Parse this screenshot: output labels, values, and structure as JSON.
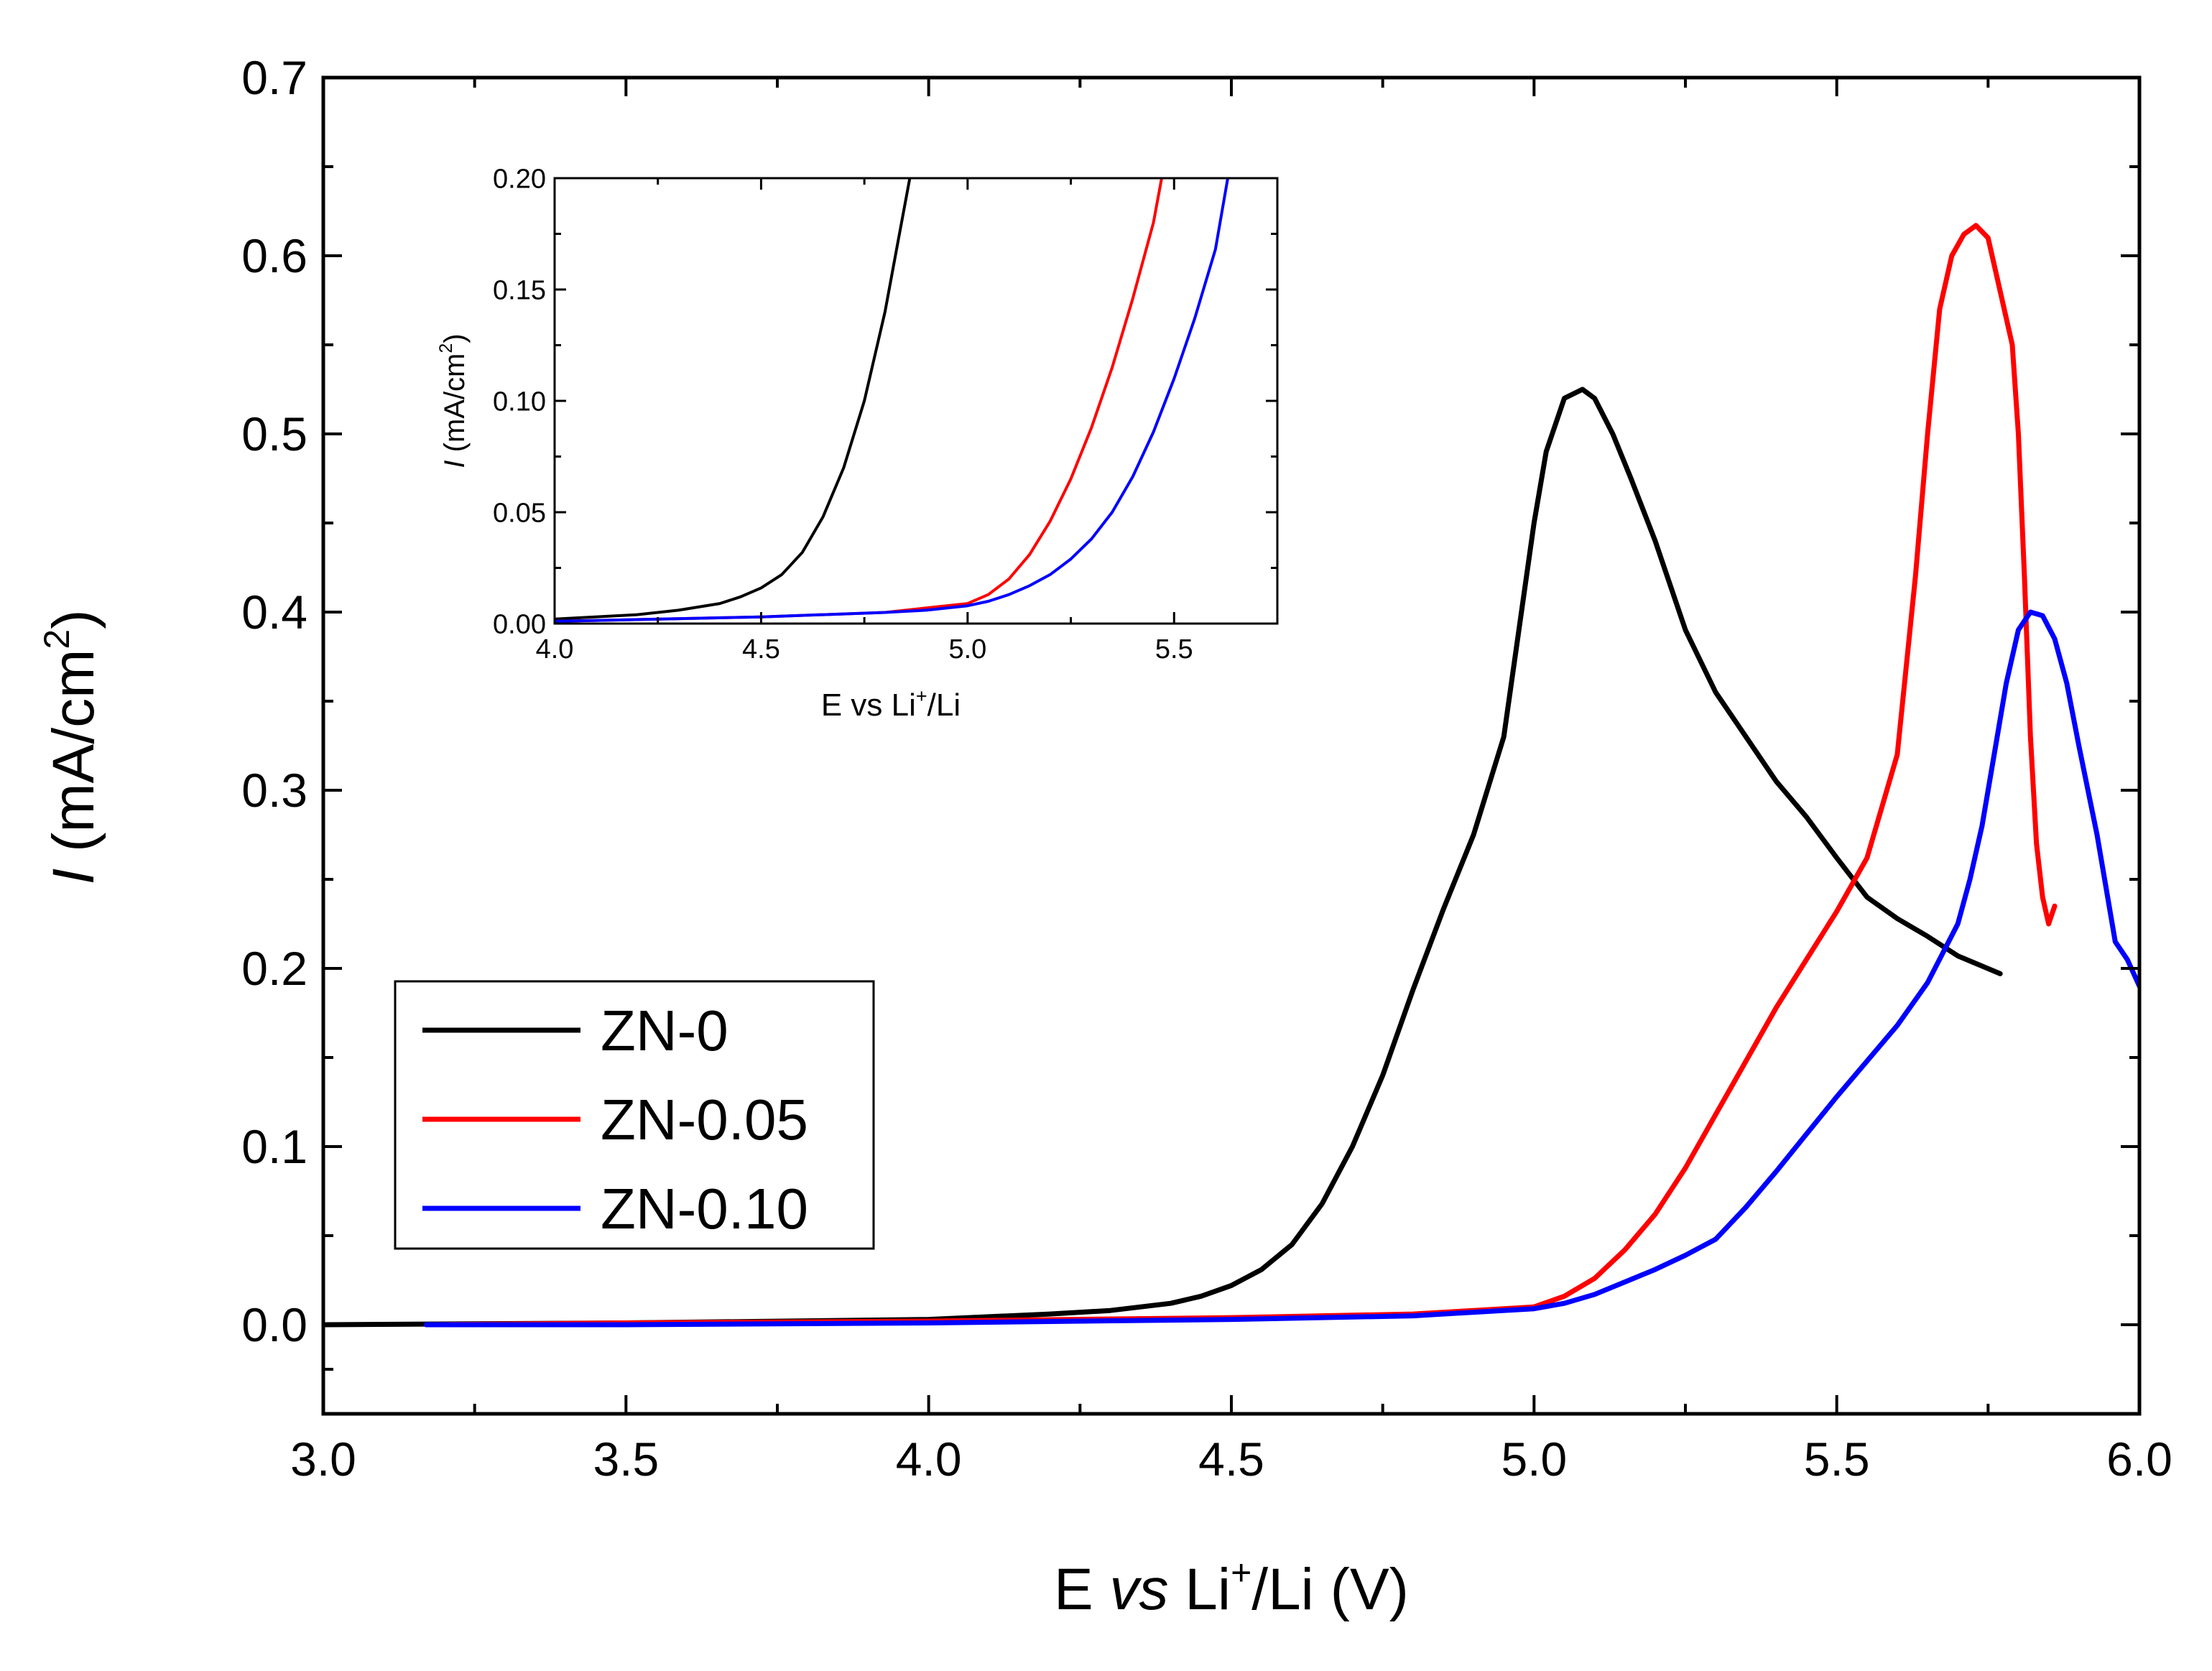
{
  "chart_data": [
    {
      "id": "main",
      "type": "line",
      "title": "",
      "xlabel": {
        "main": "E ",
        "italic": "vs",
        "mid": " Li",
        "sup": "+",
        "tail": "/Li (V)"
      },
      "ylabel": {
        "italic": "I",
        "mid": " (mA/cm",
        "sup": "2",
        "tail": ")"
      },
      "xlim": [
        3.0,
        6.0
      ],
      "ylim": [
        -0.05,
        0.7
      ],
      "xticks": [
        3.0,
        3.5,
        4.0,
        4.5,
        5.0,
        5.5,
        6.0
      ],
      "xtick_labels": [
        "3.0",
        "3.5",
        "4.0",
        "4.5",
        "5.0",
        "5.5",
        "6.0"
      ],
      "yticks": [
        0.0,
        0.1,
        0.2,
        0.3,
        0.4,
        0.5,
        0.6,
        0.7
      ],
      "ytick_labels": [
        "0.0",
        "0.1",
        "0.2",
        "0.3",
        "0.4",
        "0.5",
        "0.6",
        "0.7"
      ],
      "grid": false,
      "legend_position": "bottom-left",
      "series": [
        {
          "name": "ZN-0",
          "color": "#000000",
          "x": [
            3.0,
            3.5,
            4.0,
            4.2,
            4.3,
            4.4,
            4.45,
            4.5,
            4.55,
            4.6,
            4.65,
            4.7,
            4.75,
            4.8,
            4.85,
            4.9,
            4.95,
            5.0,
            5.02,
            5.05,
            5.08,
            5.1,
            5.13,
            5.16,
            5.2,
            5.25,
            5.3,
            5.35,
            5.4,
            5.45,
            5.5,
            5.55,
            5.6,
            5.65,
            5.7,
            5.77
          ],
          "y": [
            0.0,
            0.001,
            0.003,
            0.006,
            0.008,
            0.012,
            0.016,
            0.022,
            0.031,
            0.045,
            0.068,
            0.1,
            0.14,
            0.188,
            0.233,
            0.275,
            0.33,
            0.45,
            0.49,
            0.52,
            0.525,
            0.52,
            0.5,
            0.475,
            0.44,
            0.39,
            0.355,
            0.33,
            0.305,
            0.285,
            0.262,
            0.24,
            0.228,
            0.218,
            0.207,
            0.197
          ]
        },
        {
          "name": "ZN-0.05",
          "color": "#ff0000",
          "x": [
            3.17,
            3.5,
            4.0,
            4.5,
            4.8,
            4.9,
            5.0,
            5.05,
            5.1,
            5.15,
            5.2,
            5.25,
            5.3,
            5.35,
            5.4,
            5.45,
            5.5,
            5.55,
            5.6,
            5.63,
            5.65,
            5.67,
            5.69,
            5.71,
            5.73,
            5.75,
            5.77,
            5.79,
            5.8,
            5.81,
            5.82,
            5.83,
            5.84,
            5.85,
            5.86
          ],
          "y": [
            0.0,
            0.001,
            0.002,
            0.004,
            0.006,
            0.008,
            0.01,
            0.016,
            0.026,
            0.042,
            0.062,
            0.088,
            0.118,
            0.148,
            0.178,
            0.205,
            0.232,
            0.262,
            0.32,
            0.42,
            0.5,
            0.57,
            0.6,
            0.612,
            0.617,
            0.61,
            0.58,
            0.55,
            0.5,
            0.42,
            0.33,
            0.27,
            0.24,
            0.225,
            0.235
          ]
        },
        {
          "name": "ZN-0.10",
          "color": "#0000ff",
          "x": [
            3.17,
            3.5,
            4.0,
            4.5,
            4.8,
            4.9,
            5.0,
            5.05,
            5.1,
            5.15,
            5.2,
            5.25,
            5.3,
            5.35,
            5.4,
            5.45,
            5.5,
            5.55,
            5.6,
            5.65,
            5.7,
            5.72,
            5.74,
            5.76,
            5.78,
            5.8,
            5.82,
            5.84,
            5.86,
            5.88,
            5.9,
            5.93,
            5.96,
            5.98,
            6.0
          ],
          "y": [
            0.0,
            0.0,
            0.001,
            0.003,
            0.005,
            0.007,
            0.009,
            0.012,
            0.017,
            0.024,
            0.031,
            0.039,
            0.048,
            0.066,
            0.086,
            0.107,
            0.128,
            0.148,
            0.168,
            0.192,
            0.225,
            0.25,
            0.28,
            0.32,
            0.36,
            0.39,
            0.4,
            0.398,
            0.385,
            0.36,
            0.325,
            0.275,
            0.215,
            0.205,
            0.19
          ]
        }
      ]
    },
    {
      "id": "inset",
      "type": "line",
      "title": "",
      "xlabel": {
        "main": "E vs Li",
        "sup": "+",
        "tail": "/Li"
      },
      "ylabel": {
        "italic": "I",
        "mid": " (mA/cm",
        "sup": "2",
        "tail": ")"
      },
      "xlim": [
        4.0,
        5.75
      ],
      "ylim": [
        0.0,
        0.2
      ],
      "xticks": [
        4.0,
        4.5,
        5.0,
        5.5
      ],
      "xtick_labels": [
        "4.0",
        "4.5",
        "5.0",
        "5.5"
      ],
      "yticks": [
        0.0,
        0.05,
        0.1,
        0.15,
        0.2
      ],
      "ytick_labels": [
        "0.00",
        "0.05",
        "0.10",
        "0.15",
        "0.20"
      ],
      "grid": false,
      "series": [
        {
          "name": "ZN-0",
          "color": "#000000",
          "x": [
            4.0,
            4.2,
            4.3,
            4.4,
            4.45,
            4.5,
            4.55,
            4.6,
            4.65,
            4.7,
            4.75,
            4.8,
            4.83,
            4.86
          ],
          "y": [
            0.002,
            0.004,
            0.006,
            0.009,
            0.012,
            0.016,
            0.022,
            0.032,
            0.048,
            0.07,
            0.1,
            0.14,
            0.17,
            0.2
          ]
        },
        {
          "name": "ZN-0.05",
          "color": "#ff0000",
          "x": [
            4.0,
            4.5,
            4.8,
            4.9,
            5.0,
            5.05,
            5.1,
            5.15,
            5.2,
            5.25,
            5.3,
            5.35,
            5.4,
            5.45,
            5.47
          ],
          "y": [
            0.001,
            0.003,
            0.005,
            0.007,
            0.009,
            0.013,
            0.02,
            0.031,
            0.046,
            0.065,
            0.088,
            0.115,
            0.146,
            0.18,
            0.2
          ]
        },
        {
          "name": "ZN-0.10",
          "color": "#0000ff",
          "x": [
            4.0,
            4.5,
            4.8,
            4.9,
            5.0,
            5.05,
            5.1,
            5.15,
            5.2,
            5.25,
            5.3,
            5.35,
            5.4,
            5.45,
            5.5,
            5.55,
            5.6,
            5.63
          ],
          "y": [
            0.001,
            0.003,
            0.005,
            0.006,
            0.008,
            0.01,
            0.013,
            0.017,
            0.022,
            0.029,
            0.038,
            0.05,
            0.066,
            0.086,
            0.11,
            0.137,
            0.168,
            0.2
          ]
        }
      ]
    }
  ]
}
